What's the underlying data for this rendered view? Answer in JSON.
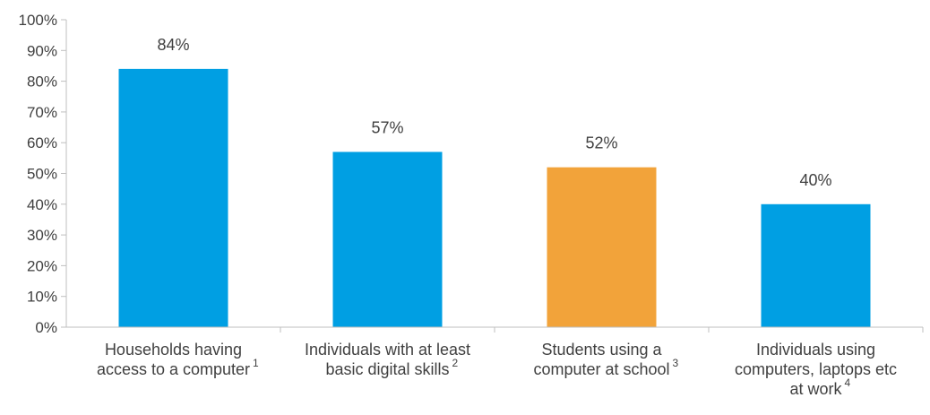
{
  "chart_data": {
    "type": "bar",
    "categories": [
      "Households having access to a computer",
      "Individuals with at least basic digital skills",
      "Students using a computer at school",
      "Individuals using computers, laptops etc at work"
    ],
    "category_lines": [
      [
        "Households having",
        "access to a computer"
      ],
      [
        "Individuals with at least",
        "basic digital skills"
      ],
      [
        "Students using a",
        "computer at school"
      ],
      [
        "Individuals using",
        "computers, laptops etc",
        "at work"
      ]
    ],
    "footnotes": [
      "1",
      "2",
      "3",
      "4"
    ],
    "values": [
      84,
      57,
      52,
      40
    ],
    "data_labels": [
      "84%",
      "57%",
      "52%",
      "40%"
    ],
    "bar_colors": [
      "#009fe3",
      "#009fe3",
      "#f2a33a",
      "#009fe3"
    ],
    "ylim": [
      0,
      100
    ],
    "yticks": [
      0,
      10,
      20,
      30,
      40,
      50,
      60,
      70,
      80,
      90,
      100
    ],
    "ytick_labels": [
      "0%",
      "10%",
      "20%",
      "30%",
      "40%",
      "50%",
      "60%",
      "70%",
      "80%",
      "90%",
      "100%"
    ],
    "title": "",
    "xlabel": "",
    "ylabel": "",
    "grid": false,
    "legend": "none"
  }
}
